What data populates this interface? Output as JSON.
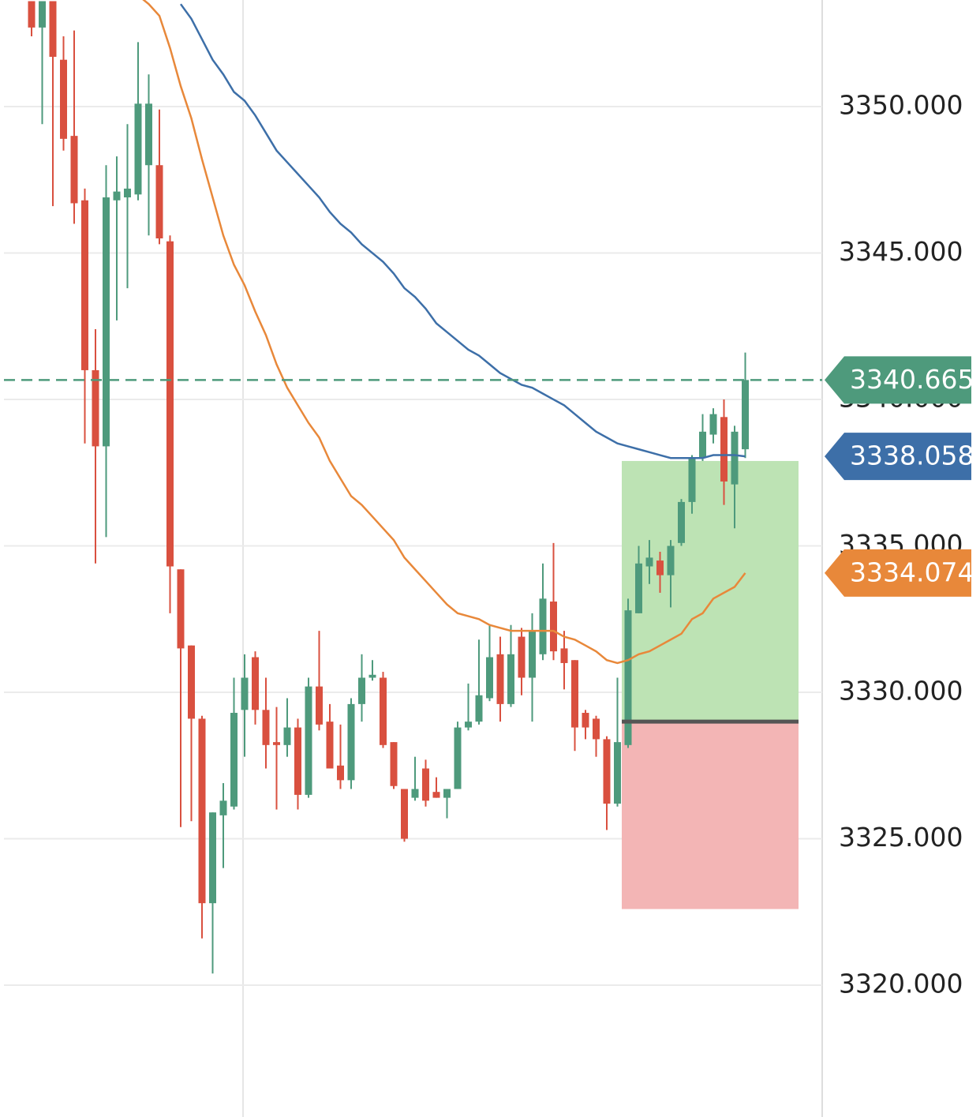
{
  "chart_data": {
    "type": "candlestick",
    "up_color": "#4e9a7c",
    "down_color": "#d9503f",
    "open": [
      3353.6,
      3352.7,
      3353.6,
      3351.6,
      3349.0,
      3346.8,
      3341.0,
      3338.4,
      3346.8,
      3346.9,
      3347.0,
      3348.0,
      3348.0,
      3345.4,
      3334.2,
      3331.6,
      3329.1,
      3322.8,
      3325.8,
      3326.1,
      3329.4,
      3331.2,
      3329.4,
      3328.3,
      3328.2,
      3328.8,
      3326.5,
      3330.2,
      3329.0,
      3327.5,
      3327.0,
      3329.6,
      3330.5,
      3330.5,
      3328.3,
      3326.7,
      3326.4,
      3327.4,
      3326.6,
      3326.4,
      3326.7,
      3328.8,
      3329.0,
      3329.8,
      3331.3,
      3329.6,
      3331.9,
      3330.5,
      3331.3,
      3333.1,
      3331.5,
      3331.1,
      3329.3,
      3329.1,
      3328.4,
      3326.2,
      3328.2,
      3332.7,
      3334.3,
      3334.5,
      3334.0,
      3335.1,
      3336.5,
      3338.0,
      3338.8,
      3339.4,
      3337.1,
      3338.3
    ],
    "high": [
      3353.6,
      3353.6,
      3353.6,
      3352.4,
      3352.6,
      3347.2,
      3342.4,
      3348.0,
      3348.3,
      3349.4,
      3352.2,
      3351.1,
      3349.9,
      3345.6,
      3334.2,
      3331.6,
      3329.2,
      3325.9,
      3326.9,
      3330.5,
      3331.3,
      3331.4,
      3330.5,
      3329.5,
      3329.8,
      3329.1,
      3330.5,
      3332.1,
      3329.6,
      3328.9,
      3329.8,
      3331.3,
      3331.1,
      3330.7,
      3328.3,
      3326.7,
      3327.8,
      3327.7,
      3327.1,
      3326.7,
      3329.0,
      3330.3,
      3331.8,
      3332.3,
      3331.9,
      3332.3,
      3332.2,
      3332.7,
      3334.4,
      3335.1,
      3332.1,
      3331.1,
      3329.4,
      3329.2,
      3328.5,
      3330.5,
      3333.2,
      3335.0,
      3335.2,
      3334.8,
      3335.2,
      3336.6,
      3338.1,
      3339.5,
      3339.7,
      3340.0,
      3339.1,
      3341.6
    ],
    "low": [
      3352.4,
      3349.4,
      3346.6,
      3348.5,
      3346.0,
      3338.5,
      3334.4,
      3335.3,
      3342.7,
      3343.8,
      3346.8,
      3345.6,
      3345.3,
      3332.7,
      3325.4,
      3325.6,
      3321.6,
      3320.4,
      3324.0,
      3326.0,
      3327.8,
      3328.9,
      3327.4,
      3326.0,
      3327.8,
      3326.0,
      3326.4,
      3328.7,
      3327.4,
      3326.7,
      3326.7,
      3329.0,
      3330.4,
      3328.1,
      3326.7,
      3324.9,
      3326.3,
      3326.1,
      3326.4,
      3325.7,
      3326.7,
      3328.7,
      3328.9,
      3329.7,
      3329.0,
      3329.5,
      3329.9,
      3329.0,
      3331.1,
      3331.1,
      3330.1,
      3328.0,
      3328.4,
      3327.8,
      3325.3,
      3326.1,
      3328.1,
      3332.7,
      3333.7,
      3333.4,
      3332.9,
      3335.0,
      3336.1,
      3337.9,
      3338.5,
      3336.4,
      3335.6,
      3338.0
    ],
    "close": [
      3352.7,
      3353.6,
      3351.7,
      3348.9,
      3346.7,
      3341.0,
      3338.4,
      3346.9,
      3347.1,
      3347.2,
      3350.1,
      3350.1,
      3345.5,
      3334.3,
      3331.5,
      3329.1,
      3322.8,
      3325.9,
      3326.3,
      3329.3,
      3330.5,
      3329.4,
      3328.2,
      3328.2,
      3328.8,
      3326.5,
      3330.2,
      3328.9,
      3327.4,
      3327.0,
      3329.6,
      3330.5,
      3330.6,
      3328.2,
      3326.8,
      3325.0,
      3326.7,
      3326.3,
      3326.4,
      3326.7,
      3328.8,
      3329.0,
      3329.9,
      3331.2,
      3329.6,
      3331.3,
      3330.5,
      3332.1,
      3333.2,
      3331.4,
      3331.0,
      3328.8,
      3328.8,
      3328.4,
      3326.2,
      3328.3,
      3332.8,
      3334.4,
      3334.6,
      3334.0,
      3335.0,
      3336.5,
      3338.0,
      3338.9,
      3339.5,
      3337.2,
      3338.9,
      3340.665
    ],
    "lines": [
      {
        "color": "#3d6fa8",
        "values": [
          null,
          null,
          null,
          null,
          null,
          null,
          null,
          null,
          null,
          null,
          null,
          null,
          null,
          null,
          3353.5,
          3353.0,
          3352.3,
          3351.6,
          3351.1,
          3350.5,
          3350.2,
          3349.7,
          3349.1,
          3348.5,
          3348.1,
          3347.7,
          3347.3,
          3346.9,
          3346.4,
          3346.0,
          3345.7,
          3345.3,
          3345.0,
          3344.7,
          3344.3,
          3343.8,
          3343.5,
          3343.1,
          3342.6,
          3342.3,
          3342.0,
          3341.7,
          3341.5,
          3341.2,
          3340.9,
          3340.7,
          3340.5,
          3340.4,
          3340.2,
          3340.0,
          3339.8,
          3339.5,
          3339.2,
          3338.9,
          3338.7,
          3338.5,
          3338.4,
          3338.3,
          3338.2,
          3338.1,
          3338.0,
          3338.0,
          3338.0,
          3338.0,
          3338.1,
          3338.1,
          3338.1,
          3338.058
        ]
      },
      {
        "color": "#e8883a",
        "values": [
          null,
          null,
          null,
          null,
          null,
          null,
          null,
          null,
          null,
          null,
          3353.8,
          3353.5,
          3353.1,
          3352.0,
          3350.7,
          3349.6,
          3348.2,
          3346.9,
          3345.6,
          3344.6,
          3343.9,
          3343.0,
          3342.2,
          3341.2,
          3340.4,
          3339.8,
          3339.2,
          3338.7,
          3337.9,
          3337.3,
          3336.7,
          3336.4,
          3336.0,
          3335.6,
          3335.2,
          3334.6,
          3334.2,
          3333.8,
          3333.4,
          3333.0,
          3332.7,
          3332.6,
          3332.5,
          3332.3,
          3332.2,
          3332.1,
          3332.1,
          3332.1,
          3332.1,
          3332.1,
          3331.9,
          3331.8,
          3331.6,
          3331.4,
          3331.1,
          3331.0,
          3331.1,
          3331.3,
          3331.4,
          3331.6,
          3331.8,
          3332.0,
          3332.5,
          3332.7,
          3333.2,
          3333.4,
          3333.6,
          3334.074
        ]
      }
    ],
    "position": {
      "entry": 3329.0,
      "take_profit": 3337.9,
      "stop_loss": 3322.6,
      "profit_color": "#bde3b4",
      "loss_color": "#f3b5b5",
      "entry_color": "#555555"
    },
    "ylim": [
      3315.5,
      3353.64
    ],
    "yticks": [
      {
        "value": 3320,
        "label": "3320.000"
      },
      {
        "value": 3325,
        "label": "3325.000"
      },
      {
        "value": 3330,
        "label": "3330.000"
      },
      {
        "value": 3335,
        "label": "3335.000"
      },
      {
        "value": 3340,
        "label": "3340.000"
      },
      {
        "value": 3345,
        "label": "3345.000"
      },
      {
        "value": 3350,
        "label": "3350.000"
      }
    ],
    "grid": true
  }
}
